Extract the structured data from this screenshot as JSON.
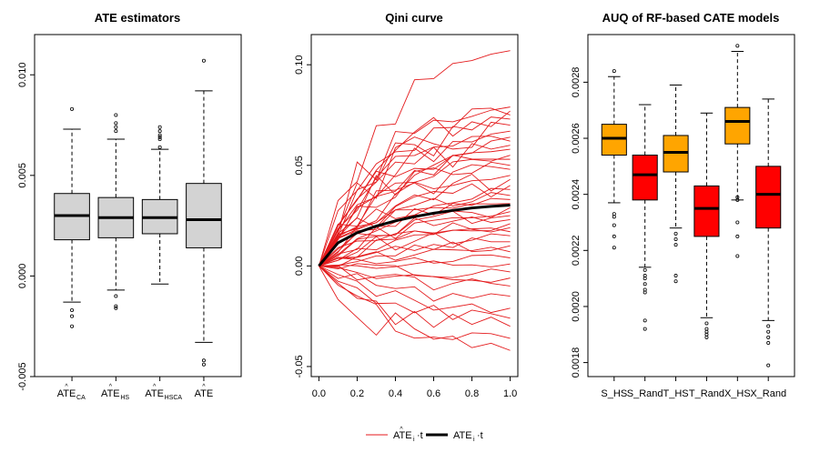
{
  "chart_data": [
    {
      "type": "boxplot",
      "title": "ATE estimators",
      "ylim": [
        -0.005,
        0.012
      ],
      "yticks": [
        -0.005,
        0.0,
        0.005,
        0.01
      ],
      "ytick_labels": [
        "-0.005",
        "0.000",
        "0.005",
        "0.010"
      ],
      "categories": [
        {
          "main": "ATE",
          "sub": "CA"
        },
        {
          "main": "ATE",
          "sub": "HS"
        },
        {
          "main": "ATE",
          "sub": "HSCA"
        },
        {
          "main": "ATE",
          "sub": ""
        }
      ],
      "boxes": [
        {
          "name": "ATE_CA",
          "whisker_low": -0.0013,
          "q1": 0.0018,
          "median": 0.003,
          "q3": 0.0041,
          "whisker_high": 0.0073,
          "outliers": [
            0.0083,
            -0.0017,
            -0.002,
            -0.0025
          ],
          "color": "#d3d3d3"
        },
        {
          "name": "ATE_HS",
          "whisker_low": -0.0007,
          "q1": 0.0019,
          "median": 0.0029,
          "q3": 0.0039,
          "whisker_high": 0.0068,
          "outliers": [
            0.0072,
            0.0074,
            0.0076,
            0.008,
            -0.001,
            -0.0015,
            -0.0016
          ],
          "color": "#d3d3d3"
        },
        {
          "name": "ATE_HSCA",
          "whisker_low": -0.0004,
          "q1": 0.0021,
          "median": 0.0029,
          "q3": 0.0038,
          "whisker_high": 0.0063,
          "outliers": [
            0.0064,
            0.0068,
            0.0069,
            0.007,
            0.0072,
            0.0074
          ],
          "color": "#d3d3d3"
        },
        {
          "name": "ATE",
          "whisker_low": -0.0033,
          "q1": 0.0014,
          "median": 0.0028,
          "q3": 0.0046,
          "whisker_high": 0.0092,
          "outliers": [
            0.0107,
            -0.0042,
            -0.0044
          ],
          "color": "#d3d3d3"
        }
      ]
    },
    {
      "type": "line",
      "title": "Qini curve",
      "xlim": [
        0,
        1
      ],
      "ylim": [
        -0.055,
        0.115
      ],
      "xticks": [
        0.0,
        0.2,
        0.4,
        0.6,
        0.8,
        1.0
      ],
      "xtick_labels": [
        "0.0",
        "0.2",
        "0.4",
        "0.6",
        "0.8",
        "1.0"
      ],
      "yticks": [
        -0.05,
        0.0,
        0.05,
        0.1
      ],
      "ytick_labels": [
        "-0.05",
        "0.00",
        "0.05",
        "0.10"
      ],
      "x": [
        0,
        0.1,
        0.2,
        0.3,
        0.4,
        0.5,
        0.6,
        0.7,
        0.8,
        0.9,
        1.0
      ],
      "mean_series": {
        "name": "ATE·t",
        "color": "#000000",
        "values": [
          0,
          0.0115,
          0.0165,
          0.0198,
          0.0224,
          0.0245,
          0.0262,
          0.0276,
          0.0288,
          0.0296,
          0.0302
        ]
      },
      "individual_series_endpoints": [
        0.107,
        0.079,
        0.077,
        0.075,
        0.073,
        0.07,
        0.067,
        0.064,
        0.062,
        0.06,
        0.058,
        0.055,
        0.053,
        0.05,
        0.048,
        0.045,
        0.043,
        0.04,
        0.038,
        0.035,
        0.033,
        0.031,
        0.029,
        0.027,
        0.025,
        0.023,
        0.021,
        0.019,
        0.017,
        0.015,
        0.012,
        0.01,
        0.007,
        0.004,
        0.001,
        -0.003,
        -0.006,
        -0.01,
        -0.015,
        -0.021,
        -0.026,
        -0.03,
        -0.036,
        -0.042
      ],
      "individual_color": "#e41a1c",
      "legend": [
        {
          "label_main": "ATE",
          "label_sub": "i",
          "suffix": "·t",
          "color": "#e41a1c",
          "width": "thin"
        },
        {
          "label_main": "ATE",
          "label_sub": "i",
          "suffix": "·t",
          "color": "#000000",
          "width": "thick"
        }
      ]
    },
    {
      "type": "boxplot",
      "title": "AUQ of RF-based CATE models",
      "ylim": [
        0.00175,
        0.00297
      ],
      "yticks": [
        0.0018,
        0.002,
        0.0022,
        0.0024,
        0.0026,
        0.0028
      ],
      "ytick_labels": [
        "0.0018",
        "0.0020",
        "0.0022",
        "0.0024",
        "0.0026",
        "0.0028"
      ],
      "categories": [
        "S_HS",
        "S_Rand",
        "T_HS",
        "T_Rand",
        "X_HS",
        "X_Rand"
      ],
      "boxes": [
        {
          "name": "S_HS",
          "whisker_low": 0.00237,
          "q1": 0.00254,
          "median": 0.0026,
          "q3": 0.00265,
          "whisker_high": 0.00282,
          "outliers": [
            0.00284,
            0.00233,
            0.00232,
            0.00229,
            0.00225,
            0.00221
          ],
          "color": "#ffa500"
        },
        {
          "name": "S_Rand",
          "whisker_low": 0.00214,
          "q1": 0.00238,
          "median": 0.00247,
          "q3": 0.00254,
          "whisker_high": 0.00272,
          "outliers": [
            0.00213,
            0.00211,
            0.0021,
            0.00208,
            0.00206,
            0.00205,
            0.00195,
            0.00192
          ],
          "color": "#ff0000"
        },
        {
          "name": "T_HS",
          "whisker_low": 0.00228,
          "q1": 0.00248,
          "median": 0.00255,
          "q3": 0.00261,
          "whisker_high": 0.00279,
          "outliers": [
            0.00226,
            0.00224,
            0.00222,
            0.00211,
            0.00209
          ],
          "color": "#ffa500"
        },
        {
          "name": "T_Rand",
          "whisker_low": 0.00196,
          "q1": 0.00225,
          "median": 0.00235,
          "q3": 0.00243,
          "whisker_high": 0.00269,
          "outliers": [
            0.00194,
            0.00192,
            0.00191,
            0.0019,
            0.00189
          ],
          "color": "#ff0000"
        },
        {
          "name": "X_HS",
          "whisker_low": 0.00238,
          "q1": 0.00258,
          "median": 0.00266,
          "q3": 0.00271,
          "whisker_high": 0.00291,
          "outliers": [
            0.00293,
            0.00239,
            0.00238,
            0.0023,
            0.00225,
            0.00218
          ],
          "color": "#ffa500"
        },
        {
          "name": "X_Rand",
          "whisker_low": 0.00195,
          "q1": 0.00228,
          "median": 0.0024,
          "q3": 0.0025,
          "whisker_high": 0.00274,
          "outliers": [
            0.00193,
            0.00191,
            0.00189,
            0.00187,
            0.00179
          ],
          "color": "#ff0000"
        }
      ]
    }
  ]
}
